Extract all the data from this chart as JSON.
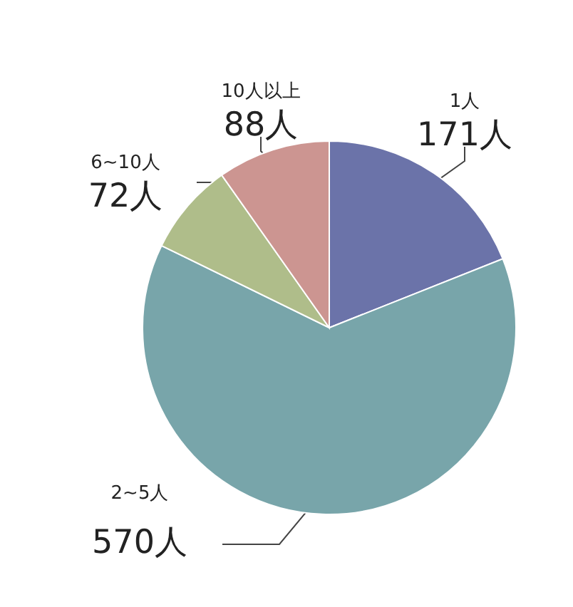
{
  "chart_data": {
    "type": "pie",
    "categories": [
      "1人",
      "2~5人",
      "6~10人",
      "10人以上"
    ],
    "values": [
      171,
      570,
      72,
      88
    ],
    "value_labels": [
      "171人",
      "570人",
      "72人",
      "88人"
    ],
    "colors": [
      "#6b73a9",
      "#78a5aa",
      "#afbd8a",
      "#cc9591"
    ]
  }
}
